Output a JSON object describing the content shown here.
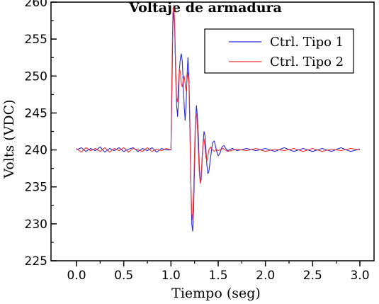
{
  "chart_data": {
    "type": "line",
    "title": "Voltaje de armadura",
    "xlabel": "Tiempo (seg)",
    "ylabel": "Volts (VDC)",
    "xlim": [
      -0.27,
      3.15
    ],
    "ylim": [
      225,
      260
    ],
    "x_ticks": [
      0.0,
      0.5,
      1.0,
      1.5,
      2.0,
      2.5,
      3.0
    ],
    "x_tick_labels": [
      "0.0",
      "0.5",
      "1.0",
      "1.5",
      "2.0",
      "2.5",
      "3.0"
    ],
    "y_ticks": [
      225,
      230,
      235,
      240,
      245,
      250,
      255,
      260
    ],
    "y_tick_labels": [
      "225",
      "230",
      "235",
      "240",
      "245",
      "250",
      "255",
      "260"
    ],
    "legend_position": "top-right",
    "series": [
      {
        "name": "Ctrl. Tipo 1",
        "color": "#2b2bd6",
        "x": [
          0.0,
          0.05,
          0.1,
          0.15,
          0.2,
          0.25,
          0.3,
          0.35,
          0.4,
          0.45,
          0.5,
          0.55,
          0.6,
          0.65,
          0.7,
          0.75,
          0.8,
          0.85,
          0.9,
          0.95,
          1.0,
          1.01,
          1.02,
          1.03,
          1.04,
          1.05,
          1.06,
          1.07,
          1.08,
          1.09,
          1.1,
          1.11,
          1.12,
          1.13,
          1.14,
          1.15,
          1.16,
          1.17,
          1.18,
          1.19,
          1.2,
          1.21,
          1.22,
          1.23,
          1.24,
          1.25,
          1.26,
          1.27,
          1.28,
          1.29,
          1.3,
          1.31,
          1.32,
          1.33,
          1.34,
          1.35,
          1.36,
          1.37,
          1.38,
          1.39,
          1.4,
          1.42,
          1.44,
          1.46,
          1.48,
          1.5,
          1.52,
          1.54,
          1.56,
          1.58,
          1.6,
          1.65,
          1.7,
          1.8,
          1.9,
          2.0,
          2.1,
          2.2,
          2.3,
          2.4,
          2.5,
          2.6,
          2.7,
          2.8,
          2.9,
          3.0
        ],
        "y": [
          240.0,
          240.3,
          239.8,
          240.2,
          239.9,
          240.4,
          239.7,
          240.2,
          239.9,
          240.3,
          239.8,
          240.1,
          240.3,
          239.8,
          240.2,
          239.9,
          240.3,
          239.7,
          240.2,
          240.0,
          240.0,
          248.0,
          257.0,
          259.0,
          256.0,
          250.0,
          246.0,
          244.5,
          247.0,
          251.0,
          252.5,
          253.0,
          252.0,
          249.0,
          246.0,
          244.0,
          246.0,
          250.0,
          252.5,
          250.0,
          244.0,
          236.0,
          230.0,
          229.0,
          232.0,
          238.0,
          244.0,
          246.0,
          244.5,
          242.0,
          238.0,
          235.5,
          236.0,
          238.5,
          241.0,
          242.5,
          242.0,
          240.0,
          238.0,
          236.8,
          237.0,
          239.0,
          241.0,
          241.2,
          240.0,
          239.2,
          239.6,
          240.4,
          240.6,
          240.2,
          239.9,
          240.2,
          239.9,
          240.2,
          239.9,
          240.2,
          239.8,
          240.3,
          239.8,
          240.2,
          239.8,
          240.2,
          239.8,
          240.3,
          239.8,
          240.1
        ]
      },
      {
        "name": "Ctrl. Tipo 2",
        "color": "#e8343a",
        "x": [
          0.0,
          0.05,
          0.1,
          0.15,
          0.2,
          0.25,
          0.3,
          0.35,
          0.4,
          0.45,
          0.5,
          0.55,
          0.6,
          0.65,
          0.7,
          0.75,
          0.8,
          0.85,
          0.9,
          0.95,
          1.0,
          1.01,
          1.02,
          1.03,
          1.04,
          1.05,
          1.06,
          1.07,
          1.08,
          1.09,
          1.1,
          1.11,
          1.12,
          1.13,
          1.14,
          1.15,
          1.16,
          1.17,
          1.18,
          1.19,
          1.2,
          1.21,
          1.22,
          1.23,
          1.24,
          1.25,
          1.26,
          1.27,
          1.28,
          1.29,
          1.3,
          1.31,
          1.32,
          1.33,
          1.34,
          1.35,
          1.36,
          1.37,
          1.38,
          1.39,
          1.4,
          1.42,
          1.44,
          1.46,
          1.48,
          1.5,
          1.55,
          1.6,
          1.7,
          1.8,
          1.9,
          2.0,
          2.1,
          2.2,
          2.3,
          2.4,
          2.5,
          2.6,
          2.7,
          2.8,
          2.9,
          3.0
        ],
        "y": [
          240.2,
          239.7,
          240.3,
          239.9,
          240.2,
          239.8,
          240.3,
          239.7,
          240.2,
          239.9,
          240.3,
          239.7,
          240.2,
          240.0,
          239.8,
          240.3,
          239.8,
          240.1,
          239.9,
          240.2,
          240.0,
          250.0,
          258.5,
          259.6,
          257.0,
          251.0,
          247.0,
          246.5,
          249.0,
          251.0,
          250.5,
          249.0,
          248.5,
          249.5,
          250.0,
          249.0,
          248.0,
          249.5,
          250.5,
          249.0,
          243.0,
          236.0,
          231.5,
          230.5,
          234.0,
          240.0,
          244.5,
          245.0,
          243.0,
          240.0,
          237.0,
          235.5,
          236.5,
          239.0,
          241.0,
          241.5,
          240.5,
          239.0,
          238.5,
          239.0,
          240.0,
          240.4,
          240.0,
          239.8,
          240.1,
          239.9,
          240.2,
          239.8,
          240.1,
          239.9,
          240.2,
          239.8,
          240.1,
          239.9,
          240.2,
          239.8,
          240.2,
          239.8,
          240.1,
          239.9,
          240.2,
          240.0
        ]
      }
    ]
  }
}
